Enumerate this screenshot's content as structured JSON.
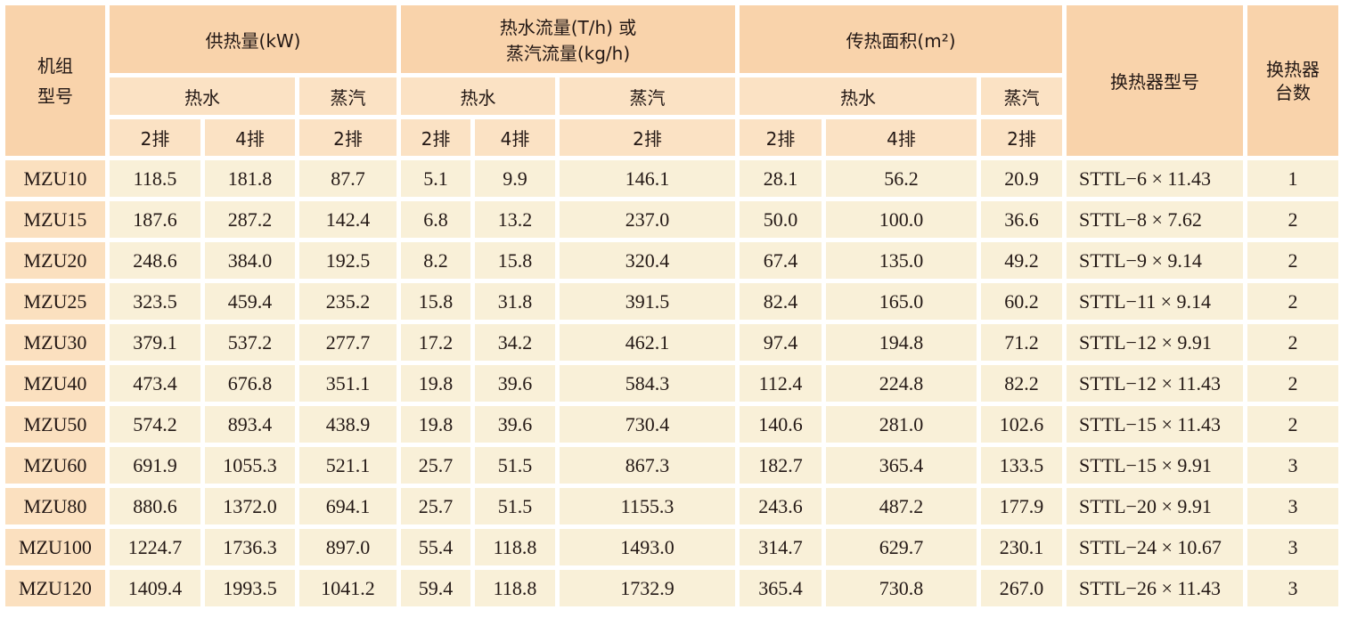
{
  "header": {
    "model": "机组\n型号",
    "heat_supply": "供热量(kW)",
    "flow_line1": "热水流量(T/h) 或",
    "flow_line2": "蒸汽流量(kg/h)",
    "area": "传热面积(m²)",
    "exchanger_model": "换热器型号",
    "exchanger_count": "换热器\n台数",
    "hot_water": "热水",
    "steam": "蒸汽",
    "rows2": "2排",
    "rows4": "4排"
  },
  "rows": [
    [
      "MZU10",
      "118.5",
      "181.8",
      "87.7",
      "5.1",
      "9.9",
      "146.1",
      "28.1",
      "56.2",
      "20.9",
      "STTL−6 × 11.43",
      "1"
    ],
    [
      "MZU15",
      "187.6",
      "287.2",
      "142.4",
      "6.8",
      "13.2",
      "237.0",
      "50.0",
      "100.0",
      "36.6",
      "STTL−8 × 7.62",
      "2"
    ],
    [
      "MZU20",
      "248.6",
      "384.0",
      "192.5",
      "8.2",
      "15.8",
      "320.4",
      "67.4",
      "135.0",
      "49.2",
      "STTL−9 × 9.14",
      "2"
    ],
    [
      "MZU25",
      "323.5",
      "459.4",
      "235.2",
      "15.8",
      "31.8",
      "391.5",
      "82.4",
      "165.0",
      "60.2",
      "STTL−11 × 9.14",
      "2"
    ],
    [
      "MZU30",
      "379.1",
      "537.2",
      "277.7",
      "17.2",
      "34.2",
      "462.1",
      "97.4",
      "194.8",
      "71.2",
      "STTL−12 × 9.91",
      "2"
    ],
    [
      "MZU40",
      "473.4",
      "676.8",
      "351.1",
      "19.8",
      "39.6",
      "584.3",
      "112.4",
      "224.8",
      "82.2",
      "STTL−12 × 11.43",
      "2"
    ],
    [
      "MZU50",
      "574.2",
      "893.4",
      "438.9",
      "19.8",
      "39.6",
      "730.4",
      "140.6",
      "281.0",
      "102.6",
      "STTL−15 × 11.43",
      "2"
    ],
    [
      "MZU60",
      "691.9",
      "1055.3",
      "521.1",
      "25.7",
      "51.5",
      "867.3",
      "182.7",
      "365.4",
      "133.5",
      "STTL−15 × 9.91",
      "3"
    ],
    [
      "MZU80",
      "880.6",
      "1372.0",
      "694.1",
      "25.7",
      "51.5",
      "1155.3",
      "243.6",
      "487.2",
      "177.9",
      "STTL−20 × 9.91",
      "3"
    ],
    [
      "MZU100",
      "1224.7",
      "1736.3",
      "897.0",
      "55.4",
      "118.8",
      "1493.0",
      "314.7",
      "629.7",
      "230.1",
      "STTL−24 × 10.67",
      "3"
    ],
    [
      "MZU120",
      "1409.4",
      "1993.5",
      "1041.2",
      "59.4",
      "118.8",
      "1732.9",
      "365.4",
      "730.8",
      "267.0",
      "STTL−26 × 11.43",
      "3"
    ]
  ],
  "colors": {
    "header": "#f9d3ab",
    "subheader": "#fbe2c4",
    "cell": "#f9f0d8",
    "model_cell": "#fbe0bf"
  }
}
